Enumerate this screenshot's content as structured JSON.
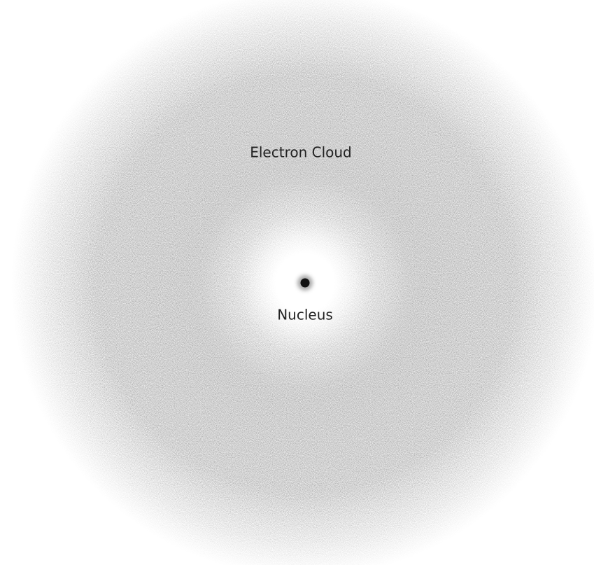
{
  "labels": {
    "cloud": "Electron Cloud",
    "nucleus": "Nucleus"
  }
}
